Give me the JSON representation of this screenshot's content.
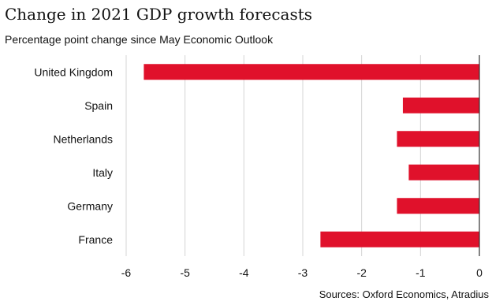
{
  "title": "Change in 2021 GDP growth forecasts",
  "subtitle": "Percentage point change since May Economic Outlook",
  "source": "Sources: Oxford Economics, Atradius",
  "colors": {
    "bar": "#e0112b",
    "grid": "#d4d4d4",
    "axis": "#333333",
    "text": "#111111"
  },
  "chart_data": {
    "type": "bar",
    "orientation": "horizontal",
    "categories": [
      "United Kingdom",
      "Spain",
      "Netherlands",
      "Italy",
      "Germany",
      "France"
    ],
    "values": [
      -5.7,
      -1.3,
      -1.4,
      -1.2,
      -1.4,
      -2.7
    ],
    "title": "Change in 2021 GDP growth forecasts",
    "subtitle": "Percentage point change since May Economic Outlook",
    "xlabel": "",
    "ylabel": "",
    "xlim": [
      -6,
      0
    ],
    "xticks": [
      -6,
      -5,
      -4,
      -3,
      -2,
      -1,
      0
    ],
    "xtick_labels": [
      "-6",
      "-5",
      "-4",
      "-3",
      "-2",
      "-1",
      "0"
    ],
    "grid": true,
    "legend": "none"
  }
}
